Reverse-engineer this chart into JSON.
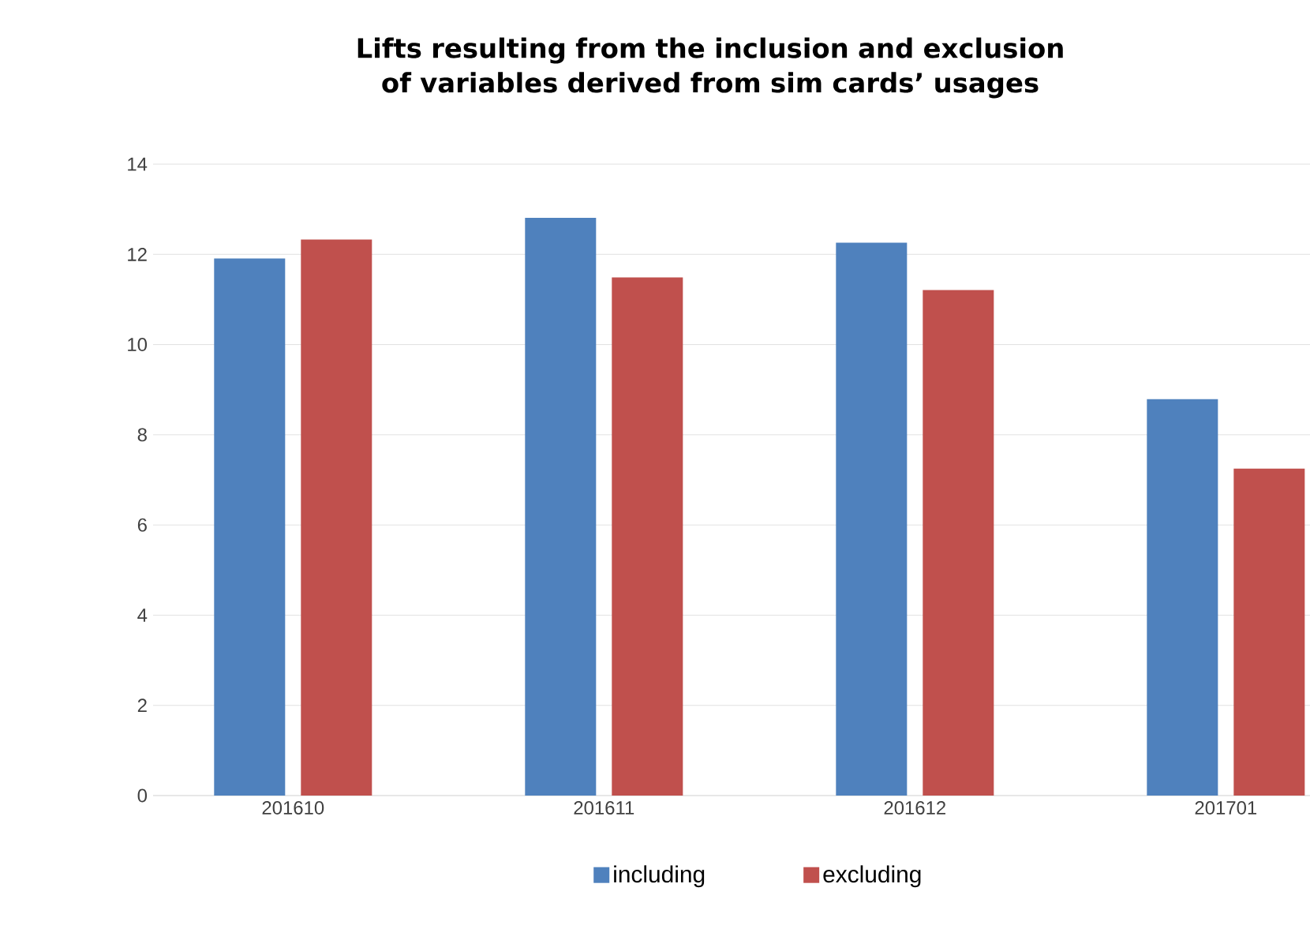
{
  "chart_data": {
    "type": "bar",
    "title": "Lifts resulting from the inclusion and exclusion of variables derived from sim cards’ usages",
    "categories": [
      "201610",
      "201611",
      "201612",
      "201701"
    ],
    "series": [
      {
        "name": "including",
        "color": "#4f81bd",
        "values": [
          11.91,
          12.81,
          12.26,
          8.79
        ]
      },
      {
        "name": "excluding",
        "color": "#c0504d",
        "values": [
          12.33,
          11.49,
          11.21,
          7.25
        ]
      }
    ],
    "ylim": [
      0,
      14
    ],
    "yticks": [
      0,
      2,
      4,
      6,
      8,
      10,
      12,
      14
    ],
    "grid": "y",
    "legend": "bottom"
  }
}
